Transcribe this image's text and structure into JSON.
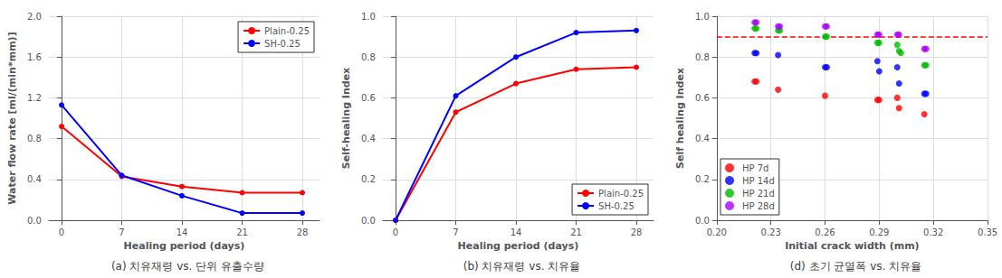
{
  "chart_data": [
    {
      "type": "line",
      "title": "(a) 치유재령 vs. 단위 유출수량",
      "xlabel": "Healing period (days)",
      "ylabel": "Water flow rate [ml/(min*mm)]",
      "x": [
        0,
        7,
        14,
        21,
        28
      ],
      "series": [
        {
          "name": "Plain-0.25",
          "color": "#FF0000",
          "marker": "circle",
          "values": [
            0.92,
            0.43,
            0.33,
            0.27,
            0.27
          ]
        },
        {
          "name": "SH-0.25",
          "color": "#0000FF",
          "marker": "circle",
          "values": [
            1.13,
            0.44,
            0.24,
            0.07,
            0.07
          ]
        }
      ],
      "xlim": [
        -1.5,
        30
      ],
      "xticks": [
        0,
        7,
        14,
        21,
        28
      ],
      "ylim": [
        0,
        2.0
      ],
      "yticks": [
        {
          "value": 0,
          "label": "0.0"
        },
        0.4,
        0.8,
        1.2,
        1.6,
        {
          "value": 2,
          "label": "2.0"
        }
      ],
      "grid": true,
      "legend": "upper right"
    },
    {
      "type": "line",
      "title": "(b) 치유재령 vs. 치유율",
      "xlabel": "Healing period (days)",
      "ylabel": "Self-healing Index",
      "x": [
        0,
        7,
        14,
        21,
        28
      ],
      "series": [
        {
          "name": "Plain-0.25",
          "color": "#FF0000",
          "marker": "circle",
          "values": [
            0.0,
            0.53,
            0.67,
            0.74,
            0.75
          ]
        },
        {
          "name": "SH-0.25",
          "color": "#0000FF",
          "marker": "circle",
          "values": [
            0.0,
            0.61,
            0.8,
            0.92,
            0.93
          ]
        }
      ],
      "xlim": [
        -1.5,
        30
      ],
      "xticks": [
        0,
        7,
        14,
        21,
        28
      ],
      "ylim": [
        0,
        1.0
      ],
      "yticks": [
        {
          "value": 0,
          "label": "0.0"
        },
        0.2,
        0.4,
        0.6,
        0.8,
        {
          "value": 1,
          "label": "1.0"
        }
      ],
      "grid": true,
      "legend": "lower right"
    },
    {
      "type": "scatter",
      "title": "(d) 초기 균열폭 vs. 치유율",
      "xlabel": "Initial crack width (mm)",
      "ylabel": "Self healing Index",
      "series": [
        {
          "name": "HP 7d",
          "color": "#FF0000",
          "marker": "circle",
          "x": [
            0.221,
            0.222,
            0.234,
            0.26,
            0.289,
            0.29,
            0.3,
            0.301,
            0.315
          ],
          "values": [
            0.68,
            0.68,
            0.64,
            0.61,
            0.59,
            0.59,
            0.6,
            0.55,
            0.52
          ]
        },
        {
          "name": "HP 14d",
          "color": "#0000FF",
          "marker": "circle",
          "x": [
            0.221,
            0.222,
            0.234,
            0.26,
            0.261,
            0.289,
            0.29,
            0.3,
            0.301,
            0.315,
            0.316
          ],
          "values": [
            0.82,
            0.82,
            0.81,
            0.75,
            0.75,
            0.78,
            0.73,
            0.75,
            0.67,
            0.62,
            0.62
          ]
        },
        {
          "name": "HP 21d",
          "color": "#00BB00",
          "marker": "circle",
          "x": [
            0.221,
            0.222,
            0.234,
            0.235,
            0.26,
            0.261,
            0.289,
            0.29,
            0.3,
            0.301,
            0.302,
            0.315,
            0.316
          ],
          "values": [
            0.94,
            0.94,
            0.93,
            0.93,
            0.9,
            0.9,
            0.87,
            0.87,
            0.86,
            0.83,
            0.82,
            0.76,
            0.76
          ]
        },
        {
          "name": "HP 28d",
          "color": "#AA00FF",
          "marker": "circle",
          "x": [
            0.221,
            0.222,
            0.234,
            0.235,
            0.26,
            0.261,
            0.289,
            0.29,
            0.3,
            0.301,
            0.315,
            0.316
          ],
          "values": [
            0.97,
            0.97,
            0.95,
            0.95,
            0.95,
            0.95,
            0.91,
            0.91,
            0.91,
            0.91,
            0.84,
            0.84
          ]
        }
      ],
      "reference_lines": [
        {
          "y": 0.9,
          "color": "#FF0000",
          "line_style": "dashed"
        }
      ],
      "xlim": [
        0.2,
        0.35
      ],
      "xticks": [
        {
          "value": 0.2,
          "label": "0.20"
        },
        0.23,
        0.26,
        0.29,
        0.32,
        0.35
      ],
      "ylim": [
        0,
        1.0
      ],
      "yticks": [
        {
          "value": 0,
          "label": "0.0"
        },
        0.2,
        0.4,
        0.6,
        0.8,
        {
          "value": 1,
          "label": "1.0"
        }
      ],
      "grid": true,
      "legend": "lower left"
    }
  ]
}
